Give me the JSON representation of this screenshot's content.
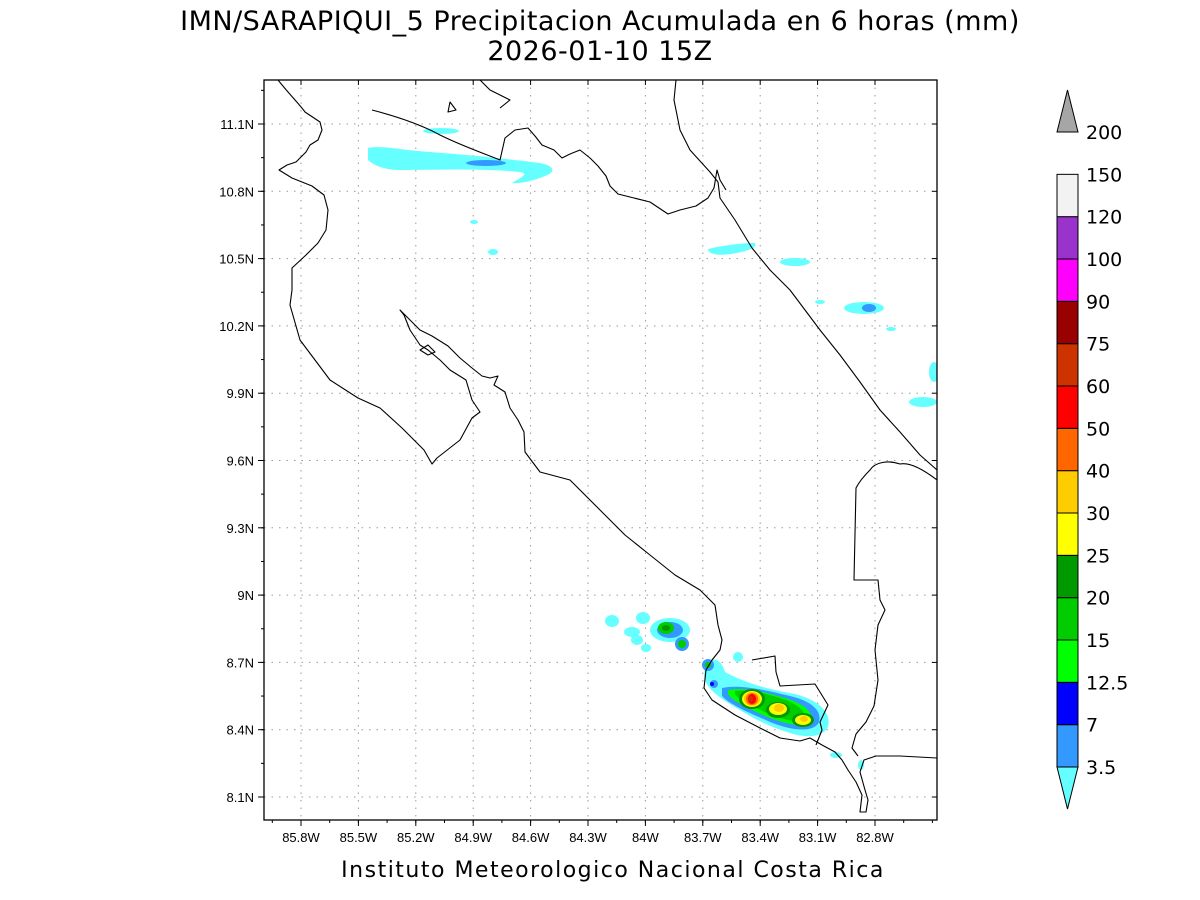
{
  "title_line1": "IMN/SARAPIQUI_5 Precipitacion Acumulada en 6 horas (mm)",
  "title_line2": "2026-01-10 15Z",
  "footer": "Instituto Meteorologico Nacional Costa Rica",
  "lon_ticks": [
    "85.8W",
    "85.5W",
    "85.2W",
    "84.9W",
    "84.6W",
    "84.3W",
    "84W",
    "83.7W",
    "83.4W",
    "83.1W",
    "82.8W"
  ],
  "lat_ticks": [
    "11.1N",
    "10.8N",
    "10.5N",
    "10.2N",
    "9.9N",
    "9.6N",
    "9.3N",
    "9N",
    "8.7N",
    "8.4N",
    "8.1N"
  ],
  "colorbar": {
    "labels": [
      "3.5",
      "7",
      "12.5",
      "15",
      "20",
      "25",
      "30",
      "40",
      "50",
      "60",
      "75",
      "90",
      "100",
      "120",
      "150",
      "200"
    ],
    "colors": [
      "#66ffff",
      "#3399ff",
      "#0000ff",
      "#00ff00",
      "#00cc00",
      "#009900",
      "#ffff00",
      "#ffcc00",
      "#ff6600",
      "#ff0000",
      "#cc3300",
      "#990000",
      "#ff00ff",
      "#9933cc",
      "#f2f2f2",
      "#a6a6a6"
    ]
  }
}
